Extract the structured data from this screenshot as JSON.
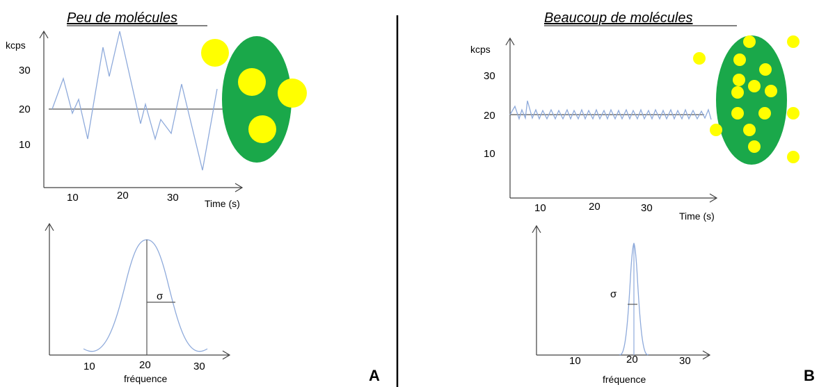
{
  "panel_a": {
    "title": "Peu de molécules",
    "y_unit": "kcps",
    "y_ticks": [
      "30",
      "20",
      "10"
    ],
    "x_ticks": [
      "10",
      "20",
      "30"
    ],
    "x_label": "Time (s)",
    "hist_x_ticks": [
      "10",
      "20",
      "30"
    ],
    "hist_x_label": "fréquence",
    "sigma": "σ",
    "letter": "A"
  },
  "panel_b": {
    "title": "Beaucoup de molécules",
    "y_unit": "kcps",
    "y_ticks": [
      "30",
      "20",
      "10"
    ],
    "x_ticks": [
      "10",
      "20",
      "30"
    ],
    "x_label": "Time (s)",
    "hist_x_ticks": [
      "10",
      "20",
      "30"
    ],
    "hist_x_label": "fréquence",
    "sigma": "σ",
    "letter": "B"
  },
  "colors": {
    "cell": "#1aa84a",
    "molecule": "#ffff00",
    "signal": "#8eaadb"
  }
}
